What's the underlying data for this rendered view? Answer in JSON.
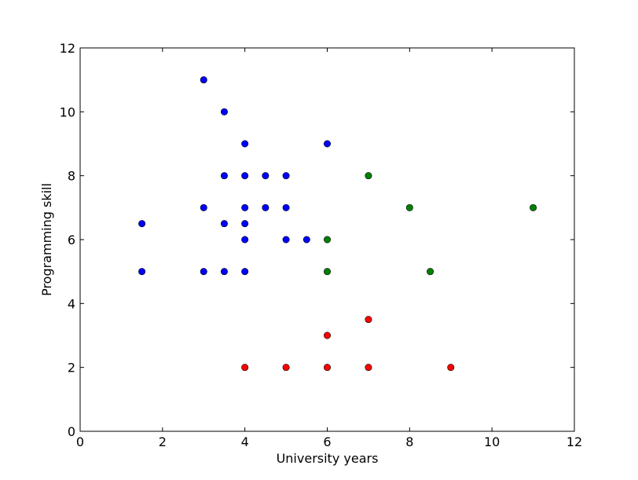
{
  "chart_data": {
    "type": "scatter",
    "title": "",
    "xlabel": "University years",
    "ylabel": "Programming skill",
    "xlim": [
      0,
      12
    ],
    "ylim": [
      0,
      12
    ],
    "x_ticks": [
      "0",
      "2",
      "4",
      "6",
      "8",
      "10",
      "12"
    ],
    "y_ticks": [
      "0",
      "2",
      "4",
      "6",
      "8",
      "10",
      "12"
    ],
    "grid": false,
    "legend": "none",
    "series": [
      {
        "color": "#0000ff",
        "points": [
          [
            1.5,
            6.5
          ],
          [
            1.5,
            5
          ],
          [
            3,
            11
          ],
          [
            3,
            7
          ],
          [
            3,
            5
          ],
          [
            3.5,
            10
          ],
          [
            3.5,
            8
          ],
          [
            3.5,
            6.5
          ],
          [
            3.5,
            5
          ],
          [
            4,
            9
          ],
          [
            4,
            8
          ],
          [
            4,
            7
          ],
          [
            4,
            6.5
          ],
          [
            4,
            6
          ],
          [
            4,
            5
          ],
          [
            4.5,
            8
          ],
          [
            4.5,
            7
          ],
          [
            5,
            8
          ],
          [
            5,
            7
          ],
          [
            5,
            6
          ],
          [
            5.5,
            6
          ],
          [
            6,
            9
          ]
        ]
      },
      {
        "color": "#008000",
        "points": [
          [
            6,
            6
          ],
          [
            6,
            5
          ],
          [
            7,
            8
          ],
          [
            8,
            7
          ],
          [
            8.5,
            5
          ],
          [
            11,
            7
          ]
        ]
      },
      {
        "color": "#ff0000",
        "points": [
          [
            4,
            2
          ],
          [
            5,
            2
          ],
          [
            6,
            3
          ],
          [
            6,
            2
          ],
          [
            7,
            3.5
          ],
          [
            7,
            2
          ],
          [
            9,
            2
          ]
        ]
      }
    ]
  }
}
